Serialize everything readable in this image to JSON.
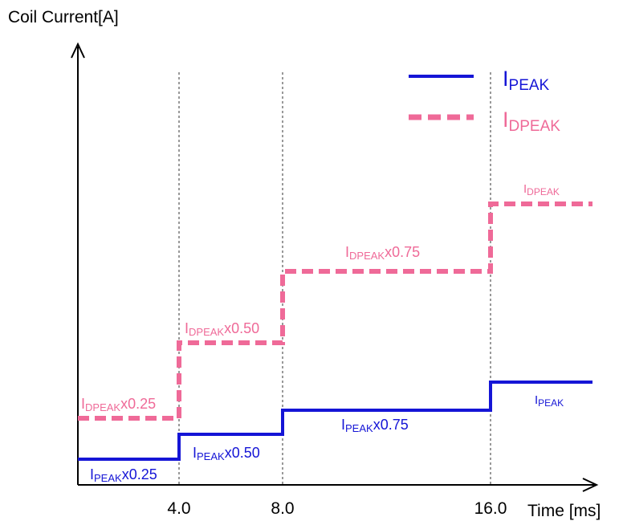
{
  "chart_data": {
    "type": "line",
    "title": "",
    "ylabel": "Coil Current[A]",
    "xlabel": "Time [ms]",
    "x_ticks": [
      "4.0",
      "8.0",
      "16.0"
    ],
    "grid": "vertical dashed lines at 4.0, 8.0, 16.0",
    "legend_position": "top-right",
    "series": [
      {
        "name": "IPEAK",
        "label_main": "I",
        "label_sub": "PEAK",
        "color": "#1515d6",
        "line_style": "solid",
        "steps": [
          {
            "from": "start",
            "to": "4.0",
            "level": 0.25,
            "label_main": "I",
            "label_sub": "PEAK",
            "label_suffix": "x0.25"
          },
          {
            "from": "4.0",
            "to": "8.0",
            "level": 0.5,
            "label_main": "I",
            "label_sub": "PEAK",
            "label_suffix": "x0.50"
          },
          {
            "from": "8.0",
            "to": "16.0",
            "level": 0.75,
            "label_main": "I",
            "label_sub": "PEAK",
            "label_suffix": "x0.75"
          },
          {
            "from": "16.0",
            "to": "end",
            "level": 1.0,
            "label_main": "I",
            "label_sub": "PEAK",
            "label_suffix": ""
          }
        ]
      },
      {
        "name": "IDPEAK",
        "label_main": "I",
        "label_sub": "DPEAK",
        "color": "#ef6a98",
        "line_style": "dashed",
        "steps": [
          {
            "from": "start",
            "to": "4.0",
            "level": 0.25,
            "label_main": "I",
            "label_sub": "DPEAK",
            "label_suffix": "x0.25"
          },
          {
            "from": "4.0",
            "to": "8.0",
            "level": 0.5,
            "label_main": "I",
            "label_sub": "DPEAK",
            "label_suffix": "x0.50"
          },
          {
            "from": "8.0",
            "to": "16.0",
            "level": 0.75,
            "label_main": "I",
            "label_sub": "DPEAK",
            "label_suffix": "x0.75"
          },
          {
            "from": "16.0",
            "to": "end",
            "level": 1.0,
            "label_main": "I",
            "label_sub": "DPEAK",
            "label_suffix": ""
          }
        ]
      }
    ]
  }
}
